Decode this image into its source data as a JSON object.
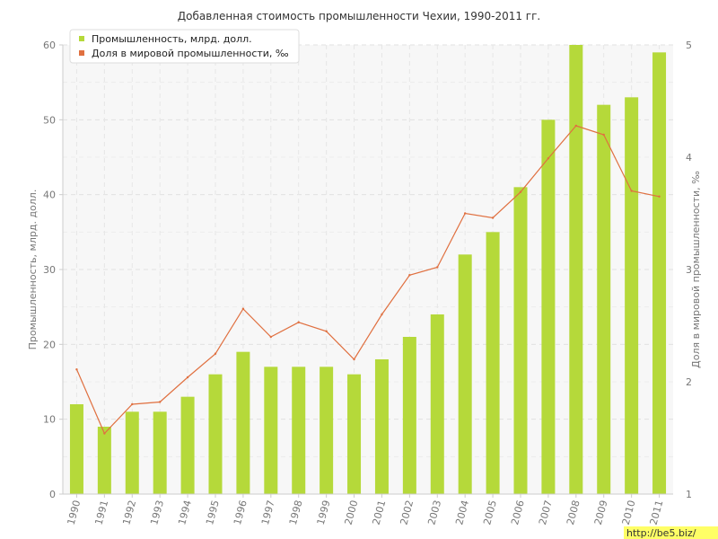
{
  "chart_data": {
    "type": "bar",
    "title": "Добавленная стоимость промышленности Чехии, 1990-2011 гг.",
    "ylabel_left": "Промышленность, млрд. долл.",
    "ylabel_right": "Доля в мировой промышленности, ‰",
    "categories": [
      "1990",
      "1991",
      "1992",
      "1993",
      "1994",
      "1995",
      "1996",
      "1997",
      "1998",
      "1999",
      "2000",
      "2001",
      "2002",
      "2003",
      "2004",
      "2005",
      "2006",
      "2007",
      "2008",
      "2009",
      "2010",
      "2011"
    ],
    "ylim_left": [
      0,
      60
    ],
    "yticks_left": [
      0,
      10,
      20,
      30,
      40,
      50,
      60
    ],
    "ylim_right": [
      1,
      5
    ],
    "yticks_right": [
      1,
      2,
      3,
      4,
      5
    ],
    "grid": true,
    "legend_position": "top-left",
    "series": [
      {
        "name": "Промышленность, млрд. долл.",
        "type": "bar",
        "axis": "left",
        "color": "#b5d93a",
        "values": [
          12,
          9,
          11,
          11,
          13,
          16,
          19,
          17,
          17,
          17,
          16,
          18,
          21,
          24,
          32,
          35,
          41,
          50,
          60,
          52,
          53,
          59
        ]
      },
      {
        "name": "Доля в мировой промышленности, ‰",
        "type": "line",
        "axis": "right",
        "color": "#e07040",
        "values": [
          2.11,
          1.54,
          1.8,
          1.82,
          2.04,
          2.25,
          2.65,
          2.4,
          2.53,
          2.45,
          2.2,
          2.6,
          2.95,
          3.02,
          3.5,
          3.46,
          3.69,
          3.99,
          4.28,
          4.2,
          3.7,
          3.65
        ]
      }
    ]
  },
  "watermark": "http://be5.biz/"
}
